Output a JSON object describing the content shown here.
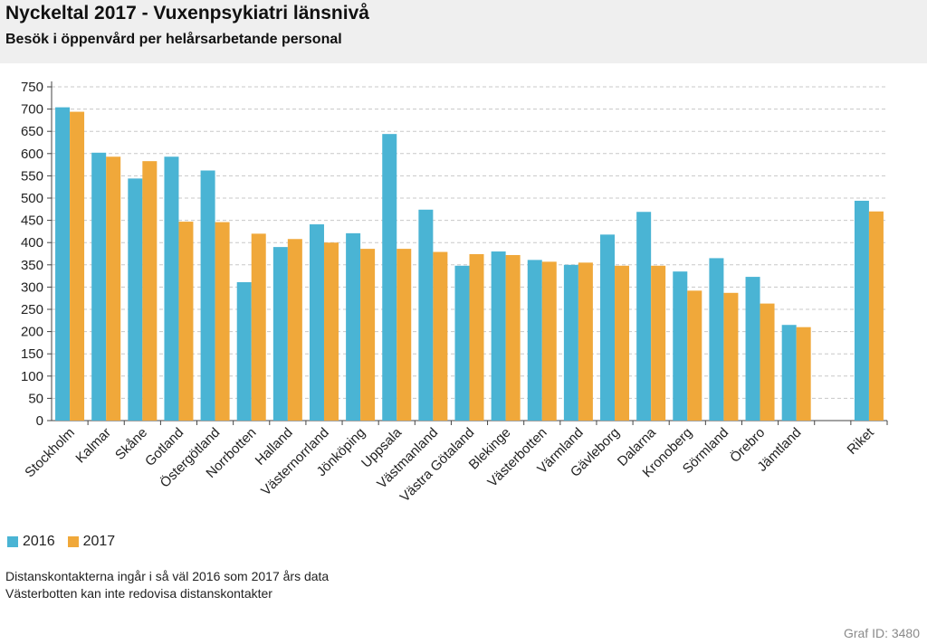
{
  "header": {
    "title": "Nyckeltal 2017 - Vuxenpsykiatri länsnivå",
    "subtitle": "Besök i öppenvård per helårsarbetande personal"
  },
  "chart_data": {
    "type": "bar",
    "categories": [
      "Stockholm",
      "Kalmar",
      "Skåne",
      "Gotland",
      "Östergötland",
      "Norrbotten",
      "Halland",
      "Västernorrland",
      "Jönköping",
      "Uppsala",
      "Västmanland",
      "Västra Götaland",
      "Blekinge",
      "Västerbotten",
      "Värmland",
      "Gävleborg",
      "Dalarna",
      "Kronoberg",
      "Sörmland",
      "Örebro",
      "Jämtland",
      "",
      "Riket"
    ],
    "series": [
      {
        "name": "2016",
        "color": "#4ab4d4",
        "values": [
          704,
          602,
          544,
          593,
          562,
          311,
          390,
          441,
          421,
          644,
          474,
          348,
          380,
          361,
          350,
          418,
          469,
          335,
          365,
          323,
          215,
          null,
          494
        ]
      },
      {
        "name": "2017",
        "color": "#f0a83a",
        "values": [
          694,
          593,
          583,
          447,
          446,
          420,
          408,
          400,
          386,
          386,
          379,
          374,
          372,
          357,
          355,
          348,
          348,
          292,
          287,
          263,
          210,
          null,
          470
        ]
      }
    ],
    "yticks": [
      0,
      50,
      100,
      150,
      200,
      250,
      300,
      350,
      400,
      450,
      500,
      550,
      600,
      650,
      700,
      750
    ],
    "ylim": [
      0,
      750
    ],
    "grid": true,
    "legend_position": "bottom-left"
  },
  "notes": [
    "Distanskontakterna ingår i så väl 2016 som 2017 års data",
    "Västerbotten kan inte redovisa distanskontakter"
  ],
  "footer": {
    "graf_id": "Graf ID: 3480"
  }
}
